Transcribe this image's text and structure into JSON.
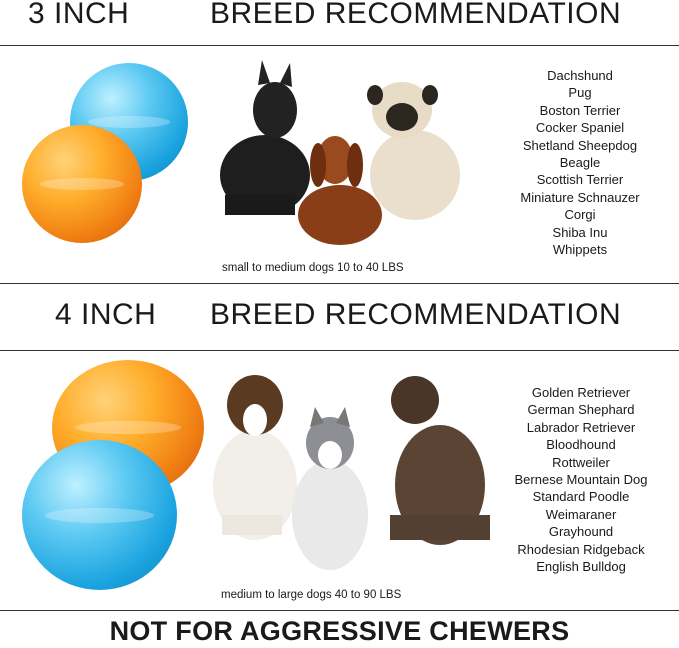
{
  "section_small": {
    "size_label": "3 INCH",
    "title": "BREED RECOMMENDATION",
    "caption": "small to medium dogs 10 to 40 LBS",
    "breeds": [
      "Dachshund",
      "Pug",
      "Boston Terrier",
      "Cocker Spaniel",
      "Shetland Sheepdog",
      "Beagle",
      "Scottish Terrier",
      "Miniature Schnauzer",
      "Corgi",
      "Shiba Inu",
      "Whippets"
    ]
  },
  "section_large": {
    "size_label": "4 INCH",
    "title": "BREED RECOMMENDATION",
    "caption": "medium to large dogs 40 to 90 LBS",
    "breeds": [
      "Golden Retriever",
      "German Shephard",
      "Labrador Retriever",
      "Bloodhound",
      "Rottweiler",
      "Bernese Mountain Dog",
      "Standard Poodle",
      "Weimaraner",
      "Grayhound",
      "Rhodesian Ridgeback",
      "English Bulldog"
    ]
  },
  "footer": {
    "warning": "NOT FOR AGGRESSIVE CHEWERS"
  },
  "colors": {
    "blue_ball": "#1aa3df",
    "orange_ball": "#f07d12",
    "text": "#1a1a1a"
  }
}
